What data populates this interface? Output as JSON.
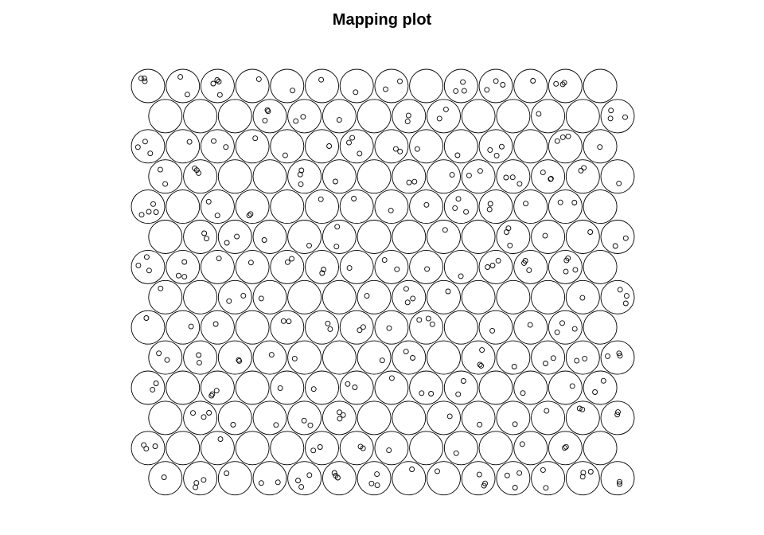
{
  "chart_data": {
    "type": "scatter",
    "title": "Mapping plot",
    "grid": {
      "xdim": 14,
      "ydim": 14,
      "topology": "hexagonal"
    },
    "unit_circle_color": "#000000",
    "point_color": "#000000",
    "rows": [
      [
        3,
        2,
        4,
        1,
        1,
        1,
        1,
        2,
        0,
        3,
        3,
        1,
        3,
        0
      ],
      [
        0,
        0,
        0,
        3,
        2,
        1,
        0,
        2,
        2,
        0,
        0,
        1,
        0,
        3
      ],
      [
        3,
        1,
        2,
        1,
        1,
        1,
        3,
        2,
        1,
        1,
        3,
        0,
        3,
        1
      ],
      [
        2,
        3,
        0,
        0,
        3,
        1,
        0,
        2,
        1,
        2,
        3,
        3,
        2,
        1
      ],
      [
        4,
        0,
        2,
        2,
        0,
        1,
        1,
        1,
        1,
        3,
        2,
        1,
        2,
        0
      ],
      [
        0,
        2,
        2,
        1,
        1,
        2,
        0,
        0,
        1,
        0,
        3,
        1,
        1,
        2
      ],
      [
        3,
        3,
        1,
        1,
        2,
        2,
        1,
        2,
        1,
        1,
        3,
        3,
        4,
        0
      ],
      [
        1,
        0,
        2,
        1,
        0,
        0,
        1,
        3,
        1,
        0,
        0,
        0,
        1,
        3
      ],
      [
        1,
        1,
        1,
        0,
        2,
        2,
        2,
        1,
        3,
        0,
        1,
        1,
        3,
        0
      ],
      [
        2,
        2,
        2,
        1,
        1,
        0,
        1,
        2,
        0,
        3,
        1,
        2,
        2,
        3
      ],
      [
        2,
        0,
        3,
        0,
        1,
        1,
        2,
        1,
        2,
        2,
        0,
        1,
        1,
        2
      ],
      [
        0,
        3,
        1,
        1,
        2,
        3,
        0,
        0,
        1,
        1,
        1,
        1,
        2,
        2
      ],
      [
        3,
        0,
        1,
        0,
        0,
        2,
        2,
        1,
        0,
        1,
        0,
        1,
        2,
        0
      ],
      [
        1,
        3,
        1,
        2,
        3,
        3,
        3,
        1,
        1,
        3,
        3,
        2,
        3,
        2
      ]
    ]
  }
}
